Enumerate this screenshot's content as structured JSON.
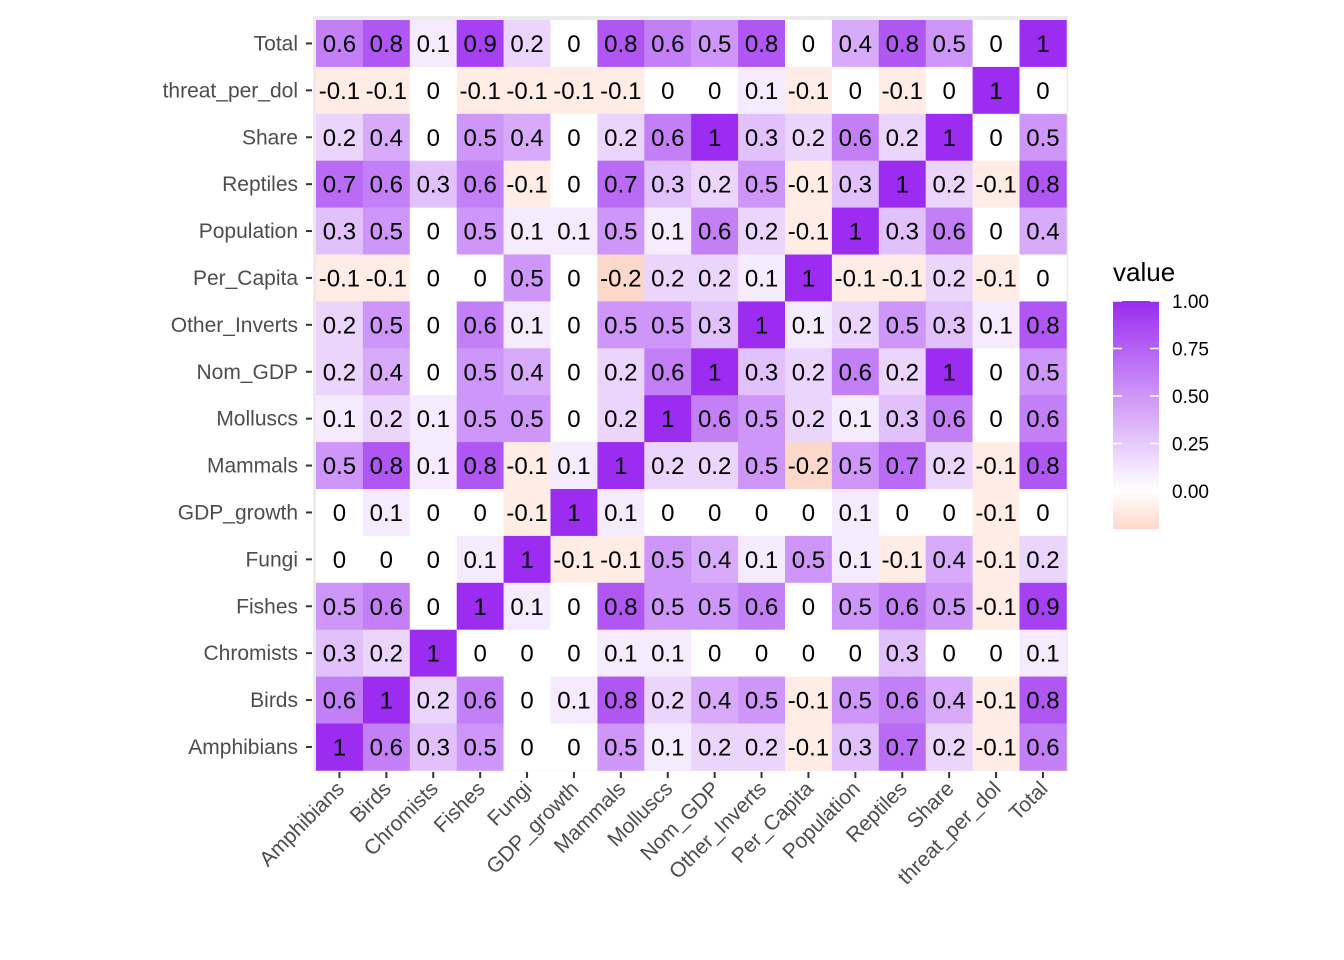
{
  "chart_data": {
    "type": "heatmap",
    "title": "",
    "xlabel": "",
    "ylabel": "",
    "variables": [
      "Amphibians",
      "Birds",
      "Chromists",
      "Fishes",
      "Fungi",
      "GDP_growth",
      "Mammals",
      "Molluscs",
      "Nom_GDP",
      "Other_Inverts",
      "Per_Capita",
      "Population",
      "Reptiles",
      "Share",
      "threat_per_dol",
      "Total"
    ],
    "y_order_top_to_bottom": [
      "Total",
      "threat_per_dol",
      "Share",
      "Reptiles",
      "Population",
      "Per_Capita",
      "Other_Inverts",
      "Nom_GDP",
      "Molluscs",
      "Mammals",
      "GDP_growth",
      "Fungi",
      "Fishes",
      "Chromists",
      "Birds",
      "Amphibians"
    ],
    "values_rows_top_to_bottom": [
      [
        0.6,
        0.8,
        0.1,
        0.9,
        0.2,
        0,
        0.8,
        0.6,
        0.5,
        0.8,
        0,
        0.4,
        0.8,
        0.5,
        0,
        1
      ],
      [
        -0.1,
        -0.1,
        0,
        -0.1,
        -0.1,
        -0.1,
        -0.1,
        0,
        0,
        0.1,
        -0.1,
        0,
        -0.1,
        0,
        1,
        0
      ],
      [
        0.2,
        0.4,
        0,
        0.5,
        0.4,
        0,
        0.2,
        0.6,
        1,
        0.3,
        0.2,
        0.6,
        0.2,
        1,
        0,
        0.5
      ],
      [
        0.7,
        0.6,
        0.3,
        0.6,
        -0.1,
        0,
        0.7,
        0.3,
        0.2,
        0.5,
        -0.1,
        0.3,
        1,
        0.2,
        -0.1,
        0.8
      ],
      [
        0.3,
        0.5,
        0,
        0.5,
        0.1,
        0.1,
        0.5,
        0.1,
        0.6,
        0.2,
        -0.1,
        1,
        0.3,
        0.6,
        0,
        0.4
      ],
      [
        -0.1,
        -0.1,
        0,
        0,
        0.5,
        0,
        -0.2,
        0.2,
        0.2,
        0.1,
        1,
        -0.1,
        -0.1,
        0.2,
        -0.1,
        0
      ],
      [
        0.2,
        0.5,
        0,
        0.6,
        0.1,
        0,
        0.5,
        0.5,
        0.3,
        1,
        0.1,
        0.2,
        0.5,
        0.3,
        0.1,
        0.8
      ],
      [
        0.2,
        0.4,
        0,
        0.5,
        0.4,
        0,
        0.2,
        0.6,
        1,
        0.3,
        0.2,
        0.6,
        0.2,
        1,
        0,
        0.5
      ],
      [
        0.1,
        0.2,
        0.1,
        0.5,
        0.5,
        0,
        0.2,
        1,
        0.6,
        0.5,
        0.2,
        0.1,
        0.3,
        0.6,
        0,
        0.6
      ],
      [
        0.5,
        0.8,
        0.1,
        0.8,
        -0.1,
        0.1,
        1,
        0.2,
        0.2,
        0.5,
        -0.2,
        0.5,
        0.7,
        0.2,
        -0.1,
        0.8
      ],
      [
        0,
        0.1,
        0,
        0,
        -0.1,
        1,
        0.1,
        0,
        0,
        0,
        0,
        0.1,
        0,
        0,
        -0.1,
        0
      ],
      [
        0,
        0,
        0,
        0.1,
        1,
        -0.1,
        -0.1,
        0.5,
        0.4,
        0.1,
        0.5,
        0.1,
        -0.1,
        0.4,
        -0.1,
        0.2
      ],
      [
        0.5,
        0.6,
        0,
        1,
        0.1,
        0,
        0.8,
        0.5,
        0.5,
        0.6,
        0,
        0.5,
        0.6,
        0.5,
        -0.1,
        0.9
      ],
      [
        0.3,
        0.2,
        1,
        0,
        0,
        0,
        0.1,
        0.1,
        0,
        0,
        0,
        0,
        0.3,
        0,
        0,
        0.1
      ],
      [
        0.6,
        1,
        0.2,
        0.6,
        0,
        0.1,
        0.8,
        0.2,
        0.4,
        0.5,
        -0.1,
        0.5,
        0.6,
        0.4,
        -0.1,
        0.8
      ],
      [
        1,
        0.6,
        0.3,
        0.5,
        0,
        0,
        0.5,
        0.1,
        0.2,
        0.2,
        -0.1,
        0.3,
        0.7,
        0.2,
        -0.1,
        0.6
      ]
    ],
    "legend": {
      "title": "value",
      "position": "right",
      "ticks": [
        "1.00",
        "0.75",
        "0.50",
        "0.25",
        "0.00"
      ],
      "tick_values": [
        1.0,
        0.75,
        0.5,
        0.25,
        0.0
      ],
      "range": [
        -0.2,
        1.0
      ]
    },
    "colors": {
      "low": "#fcd8cb",
      "mid": "#ffffff",
      "high": "#9b2cf0"
    },
    "grid": true,
    "panel_background": "#ebebeb"
  }
}
